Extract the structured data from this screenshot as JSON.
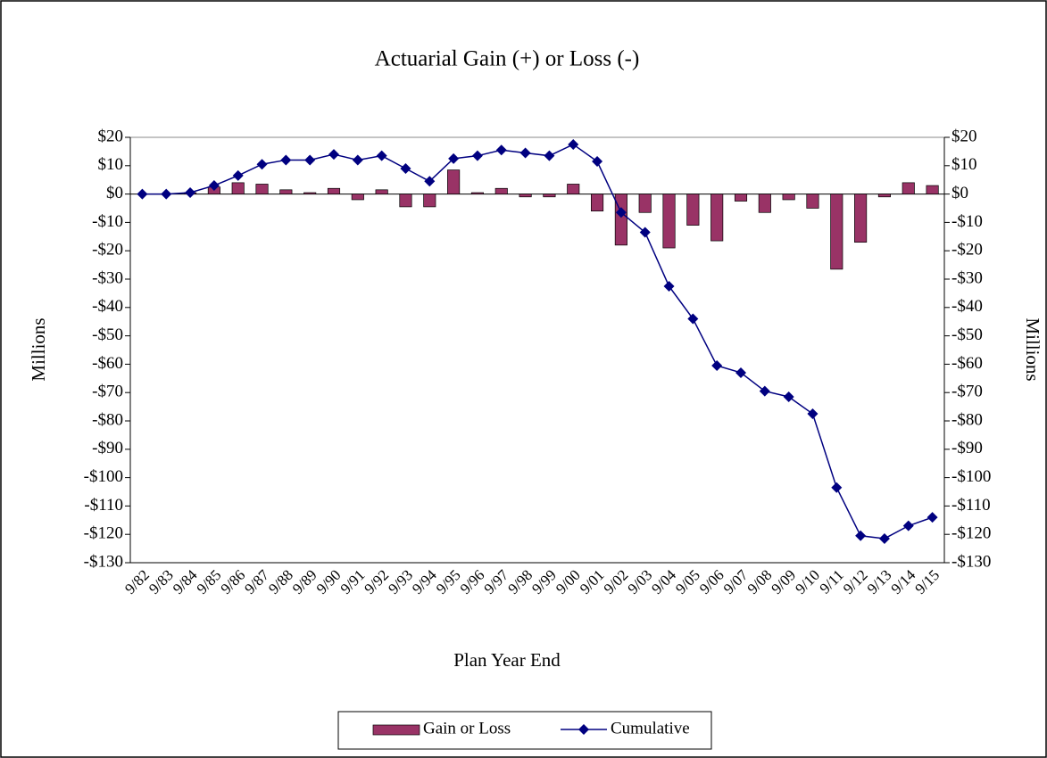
{
  "chart_data": {
    "type": "bar_line",
    "title": "Actuarial Gain (+) or Loss (-)",
    "x_label": "Plan Year End",
    "y_label": "Millions",
    "y2_label": "Millions",
    "categories": [
      "9/82",
      "9/83",
      "9/84",
      "9/85",
      "9/86",
      "9/87",
      "9/88",
      "9/89",
      "9/90",
      "9/91",
      "9/92",
      "9/93",
      "9/94",
      "9/95",
      "9/96",
      "9/97",
      "9/98",
      "9/99",
      "9/00",
      "9/01",
      "9/02",
      "9/03",
      "9/04",
      "9/05",
      "9/06",
      "9/07",
      "9/08",
      "9/09",
      "9/10",
      "9/11",
      "9/12",
      "9/13",
      "9/14",
      "9/15"
    ],
    "series": [
      {
        "name": "Gain or Loss",
        "type": "bar",
        "color": "#993366",
        "axis": "y",
        "values": [
          0,
          0,
          0.5,
          2.5,
          4,
          3.5,
          1.5,
          0.5,
          2,
          -2,
          1.5,
          -4.5,
          -4.5,
          8.5,
          0.5,
          2,
          -1,
          -1,
          3.5,
          -6,
          -18,
          -6.5,
          -19,
          -11,
          -16.5,
          -2.5,
          -6.5,
          -2,
          -5,
          -26.5,
          -17,
          -1,
          4,
          3
        ]
      },
      {
        "name": "Cumulative",
        "type": "line",
        "color": "#000080",
        "axis": "y2",
        "values": [
          0,
          0,
          0.5,
          3,
          6.5,
          10.5,
          12,
          12,
          14,
          12,
          13.5,
          9,
          4.5,
          12.5,
          13.5,
          15.5,
          14.5,
          13.5,
          17.5,
          11.5,
          -6.5,
          -13.5,
          -32.5,
          -44,
          -60.5,
          -63,
          -69.5,
          -71.5,
          -77.5,
          -103.5,
          -120.5,
          -121.5,
          -117,
          -114
        ]
      }
    ],
    "ylim": [
      -130,
      20
    ],
    "yticks": [
      {
        "value": 20,
        "label": "$20"
      },
      {
        "value": 10,
        "label": "$10"
      },
      {
        "value": 0,
        "label": "$0"
      },
      {
        "value": -10,
        "label": "-$10"
      },
      {
        "value": -20,
        "label": "-$20"
      },
      {
        "value": -30,
        "label": "-$30"
      },
      {
        "value": -40,
        "label": "-$40"
      },
      {
        "value": -50,
        "label": "-$50"
      },
      {
        "value": -60,
        "label": "-$60"
      },
      {
        "value": -70,
        "label": "-$70"
      },
      {
        "value": -80,
        "label": "-$80"
      },
      {
        "value": -90,
        "label": "-$90"
      },
      {
        "value": -100,
        "label": "-$100"
      },
      {
        "value": -110,
        "label": "-$110"
      },
      {
        "value": -120,
        "label": "-$120"
      },
      {
        "value": -130,
        "label": "-$130"
      }
    ],
    "y2lim": [
      -130,
      20
    ],
    "y2ticks": [
      {
        "value": 20,
        "label": "$20"
      },
      {
        "value": 10,
        "label": "$10"
      },
      {
        "value": 0,
        "label": "$0"
      },
      {
        "value": -10,
        "label": "-$10"
      },
      {
        "value": -20,
        "label": "-$20"
      },
      {
        "value": -30,
        "label": "-$30"
      },
      {
        "value": -40,
        "label": "-$40"
      },
      {
        "value": -50,
        "label": "-$50"
      },
      {
        "value": -60,
        "label": "-$60"
      },
      {
        "value": -70,
        "label": "-$70"
      },
      {
        "value": -80,
        "label": "-$80"
      },
      {
        "value": -90,
        "label": "-$90"
      },
      {
        "value": -100,
        "label": "-$100"
      },
      {
        "value": -110,
        "label": "-$110"
      },
      {
        "value": -120,
        "label": "-$120"
      },
      {
        "value": -130,
        "label": "-$130"
      }
    ],
    "grid": false,
    "legend": "bottom"
  }
}
